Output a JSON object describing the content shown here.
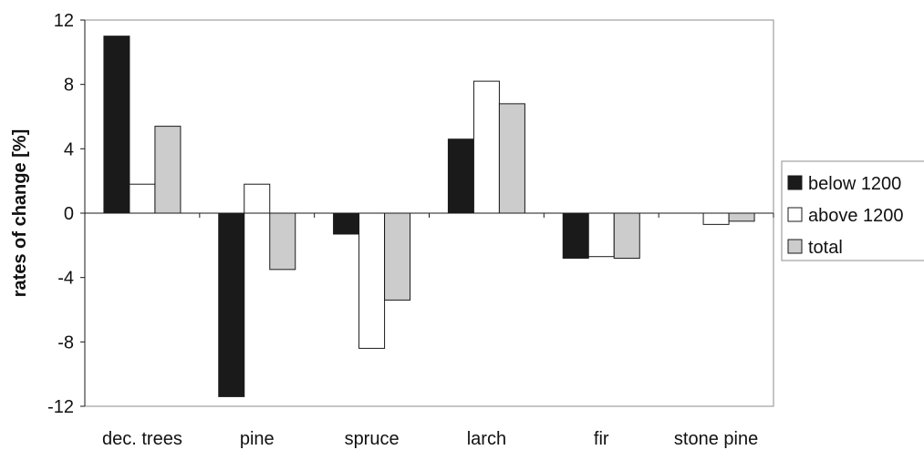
{
  "chart_data": {
    "type": "bar",
    "title": "",
    "xlabel": "",
    "ylabel": "rates of change [%]",
    "categories": [
      "dec. trees",
      "pine",
      "spruce",
      "larch",
      "fir",
      "stone pine"
    ],
    "series": [
      {
        "name": "below 1200",
        "values": [
          11.0,
          -11.4,
          -1.3,
          4.6,
          -2.8,
          0.0
        ]
      },
      {
        "name": "above 1200",
        "values": [
          1.8,
          1.8,
          -8.4,
          8.2,
          -2.7,
          -0.7
        ]
      },
      {
        "name": "total",
        "values": [
          5.4,
          -3.5,
          -5.4,
          6.8,
          -2.8,
          -0.5
        ]
      }
    ],
    "ylim": [
      -12,
      12
    ],
    "yticks": [
      12,
      8,
      4,
      0,
      -4,
      -8,
      -12
    ],
    "grid": false,
    "legend_position": "right",
    "colors": {
      "series": [
        "#1a1a1a",
        "#ffffff",
        "#cccccc"
      ],
      "stroke": "#1a1a1a",
      "frame": "#8c8c8c",
      "text": "#111111"
    }
  }
}
